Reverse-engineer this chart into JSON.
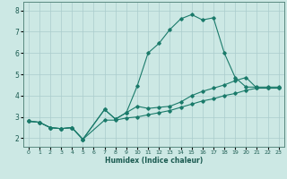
{
  "xlabel": "Humidex (Indice chaleur)",
  "background_color": "#cce8e4",
  "grid_color": "#aacccc",
  "line_color": "#1a7a6a",
  "xlim": [
    -0.5,
    23.5
  ],
  "ylim": [
    1.6,
    8.4
  ],
  "xticks": [
    0,
    1,
    2,
    3,
    4,
    5,
    6,
    7,
    8,
    9,
    10,
    11,
    12,
    13,
    14,
    15,
    16,
    17,
    18,
    19,
    20,
    21,
    22,
    23
  ],
  "yticks": [
    2,
    3,
    4,
    5,
    6,
    7,
    8
  ],
  "lines": [
    {
      "x": [
        0,
        1,
        2,
        3,
        4,
        5,
        7,
        8,
        9,
        10,
        11,
        12,
        13,
        14,
        15,
        16,
        17,
        18,
        19,
        20,
        21,
        22,
        23
      ],
      "y": [
        2.8,
        2.75,
        2.5,
        2.45,
        2.5,
        1.95,
        2.85,
        2.85,
        2.95,
        3.0,
        3.1,
        3.2,
        3.3,
        3.45,
        3.6,
        3.75,
        3.85,
        4.0,
        4.1,
        4.25,
        4.35,
        4.35,
        4.35
      ]
    },
    {
      "x": [
        0,
        1,
        2,
        3,
        4,
        5,
        7,
        8,
        9,
        10,
        11,
        12,
        13,
        14,
        15,
        16,
        17,
        18,
        19,
        20,
        21,
        22,
        23
      ],
      "y": [
        2.8,
        2.75,
        2.5,
        2.45,
        2.5,
        1.95,
        3.35,
        2.9,
        3.2,
        3.5,
        3.4,
        3.45,
        3.5,
        3.7,
        4.0,
        4.2,
        4.35,
        4.5,
        4.7,
        4.85,
        4.35,
        4.35,
        4.35
      ]
    },
    {
      "x": [
        0,
        1,
        2,
        3,
        4,
        5,
        7,
        8,
        9,
        10,
        11,
        12,
        13,
        14,
        15,
        16,
        17,
        18,
        19,
        20,
        21,
        22,
        23
      ],
      "y": [
        2.8,
        2.75,
        2.5,
        2.45,
        2.5,
        1.95,
        3.35,
        2.9,
        3.2,
        4.45,
        6.0,
        6.45,
        7.1,
        7.6,
        7.8,
        7.55,
        7.65,
        6.0,
        4.85,
        4.4,
        4.4,
        4.4,
        4.4
      ]
    }
  ]
}
